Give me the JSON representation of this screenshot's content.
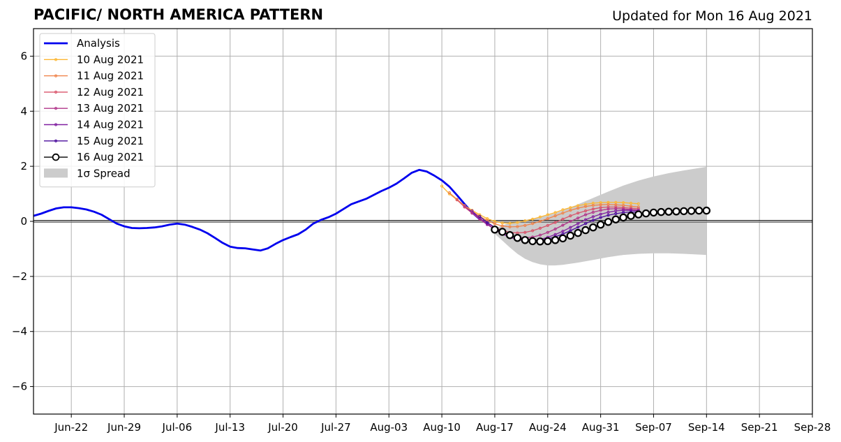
{
  "chart_data": {
    "type": "line",
    "title": "PACIFIC/ NORTH AMERICA PATTERN",
    "subtitle": "Updated for Mon 16 Aug 2021",
    "xlabel": "",
    "ylabel": "",
    "xlim": [
      "2021-06-17",
      "2021-09-28"
    ],
    "ylim": [
      -7,
      7
    ],
    "grid": true,
    "legend_position": "top-left",
    "x_ticks": [
      "2021-06-22",
      "2021-06-29",
      "2021-07-06",
      "2021-07-13",
      "2021-07-20",
      "2021-07-27",
      "2021-08-03",
      "2021-08-10",
      "2021-08-17",
      "2021-08-24",
      "2021-08-31",
      "2021-09-07",
      "2021-09-14",
      "2021-09-21",
      "2021-09-28"
    ],
    "x_tick_labels": [
      "Jun-22",
      "Jun-29",
      "Jul-06",
      "Jul-13",
      "Jul-20",
      "Jul-27",
      "Aug-03",
      "Aug-10",
      "Aug-17",
      "Aug-24",
      "Aug-31",
      "Sep-07",
      "Sep-14",
      "Sep-21",
      "Sep-28"
    ],
    "y_ticks": [
      -6,
      -4,
      -2,
      0,
      2,
      4,
      6
    ],
    "y_tick_labels": [
      "−6",
      "−4",
      "−2",
      "0",
      "2",
      "4",
      "6"
    ],
    "zero_line": 0,
    "analysis": {
      "name": "Analysis",
      "color": "#0000ee",
      "start": "2021-06-17",
      "values": [
        0.2,
        0.28,
        0.38,
        0.47,
        0.51,
        0.51,
        0.48,
        0.43,
        0.35,
        0.24,
        0.08,
        -0.08,
        -0.18,
        -0.24,
        -0.25,
        -0.24,
        -0.22,
        -0.18,
        -0.12,
        -0.08,
        -0.12,
        -0.2,
        -0.3,
        -0.43,
        -0.6,
        -0.78,
        -0.92,
        -0.97,
        -0.98,
        -1.02,
        -1.06,
        -0.98,
        -0.82,
        -0.68,
        -0.57,
        -0.47,
        -0.3,
        -0.08,
        0.05,
        0.15,
        0.28,
        0.45,
        0.62,
        0.72,
        0.82,
        0.96,
        1.1,
        1.22,
        1.37,
        1.56,
        1.76,
        1.87,
        1.81,
        1.66,
        1.49,
        1.26,
        0.95,
        0.63,
        0.32,
        0.08
      ]
    },
    "forecasts": [
      {
        "name": "10 Aug 2021",
        "color": "#fcb734",
        "start": "2021-08-10",
        "values": [
          1.28,
          1.0,
          0.78,
          0.57,
          0.4,
          0.24,
          0.1,
          0.0,
          -0.06,
          -0.07,
          -0.04,
          0.02,
          0.08,
          0.16,
          0.24,
          0.32,
          0.42,
          0.5,
          0.57,
          0.62,
          0.66,
          0.68,
          0.69,
          0.69,
          0.68,
          0.66,
          0.64
        ]
      },
      {
        "name": "11 Aug 2021",
        "color": "#f0834a",
        "start": "2021-08-11",
        "values": [
          1.04,
          0.8,
          0.57,
          0.37,
          0.18,
          0.03,
          -0.09,
          -0.17,
          -0.2,
          -0.19,
          -0.15,
          -0.08,
          0.0,
          0.1,
          0.2,
          0.3,
          0.4,
          0.48,
          0.54,
          0.58,
          0.6,
          0.61,
          0.6,
          0.58,
          0.55,
          0.52
        ]
      },
      {
        "name": "12 Aug 2021",
        "color": "#d9536a",
        "start": "2021-08-12",
        "values": [
          0.78,
          0.52,
          0.3,
          0.1,
          -0.08,
          -0.22,
          -0.33,
          -0.4,
          -0.42,
          -0.4,
          -0.34,
          -0.25,
          -0.15,
          -0.04,
          0.08,
          0.2,
          0.3,
          0.38,
          0.45,
          0.5,
          0.52,
          0.52,
          0.5,
          0.48,
          0.46
        ]
      },
      {
        "name": "13 Aug 2021",
        "color": "#b1358a",
        "start": "2021-08-13",
        "values": [
          0.55,
          0.3,
          0.08,
          -0.12,
          -0.28,
          -0.42,
          -0.52,
          -0.58,
          -0.6,
          -0.57,
          -0.5,
          -0.4,
          -0.28,
          -0.14,
          0.0,
          0.12,
          0.24,
          0.33,
          0.4,
          0.45,
          0.46,
          0.45,
          0.43,
          0.41
        ]
      },
      {
        "name": "14 Aug 2021",
        "color": "#801fa0",
        "start": "2021-08-14",
        "values": [
          0.38,
          0.12,
          -0.1,
          -0.3,
          -0.46,
          -0.58,
          -0.66,
          -0.7,
          -0.7,
          -0.66,
          -0.58,
          -0.48,
          -0.36,
          -0.22,
          -0.08,
          0.06,
          0.17,
          0.26,
          0.33,
          0.38,
          0.4,
          0.4,
          0.38
        ]
      },
      {
        "name": "15 Aug 2021",
        "color": "#4a0c9c",
        "start": "2021-08-15",
        "values": [
          0.18,
          -0.04,
          -0.22,
          -0.38,
          -0.52,
          -0.62,
          -0.68,
          -0.7,
          -0.69,
          -0.64,
          -0.56,
          -0.46,
          -0.34,
          -0.21,
          -0.08,
          0.04,
          0.14,
          0.22,
          0.28,
          0.32,
          0.34,
          0.34
        ]
      },
      {
        "name": "16 Aug 2021",
        "color": "#000000",
        "start": "2021-08-17",
        "values": [
          -0.3,
          -0.38,
          -0.5,
          -0.6,
          -0.68,
          -0.72,
          -0.73,
          -0.72,
          -0.68,
          -0.62,
          -0.52,
          -0.42,
          -0.32,
          -0.22,
          -0.12,
          -0.02,
          0.07,
          0.14,
          0.2,
          0.25,
          0.29,
          0.32,
          0.34,
          0.35,
          0.36,
          0.37,
          0.38,
          0.39,
          0.39
        ]
      }
    ],
    "spread": {
      "name": "1σ Spread",
      "color": "#cccccc",
      "dates": [
        "2021-08-17",
        "2021-08-18",
        "2021-08-19",
        "2021-08-20",
        "2021-08-21",
        "2021-08-22",
        "2021-08-23",
        "2021-08-24",
        "2021-08-25",
        "2021-08-26",
        "2021-08-28",
        "2021-08-30",
        "2021-09-01",
        "2021-09-03",
        "2021-09-05",
        "2021-09-07",
        "2021-09-09",
        "2021-09-11",
        "2021-09-14"
      ],
      "upper": [
        -0.25,
        -0.15,
        -0.05,
        0.0,
        0.05,
        0.1,
        0.15,
        0.22,
        0.3,
        0.4,
        0.62,
        0.85,
        1.08,
        1.3,
        1.48,
        1.63,
        1.75,
        1.85,
        1.98
      ],
      "lower": [
        -0.45,
        -0.7,
        -0.95,
        -1.18,
        -1.36,
        -1.48,
        -1.56,
        -1.6,
        -1.6,
        -1.58,
        -1.5,
        -1.4,
        -1.3,
        -1.22,
        -1.18,
        -1.16,
        -1.16,
        -1.18,
        -1.22
      ]
    }
  }
}
